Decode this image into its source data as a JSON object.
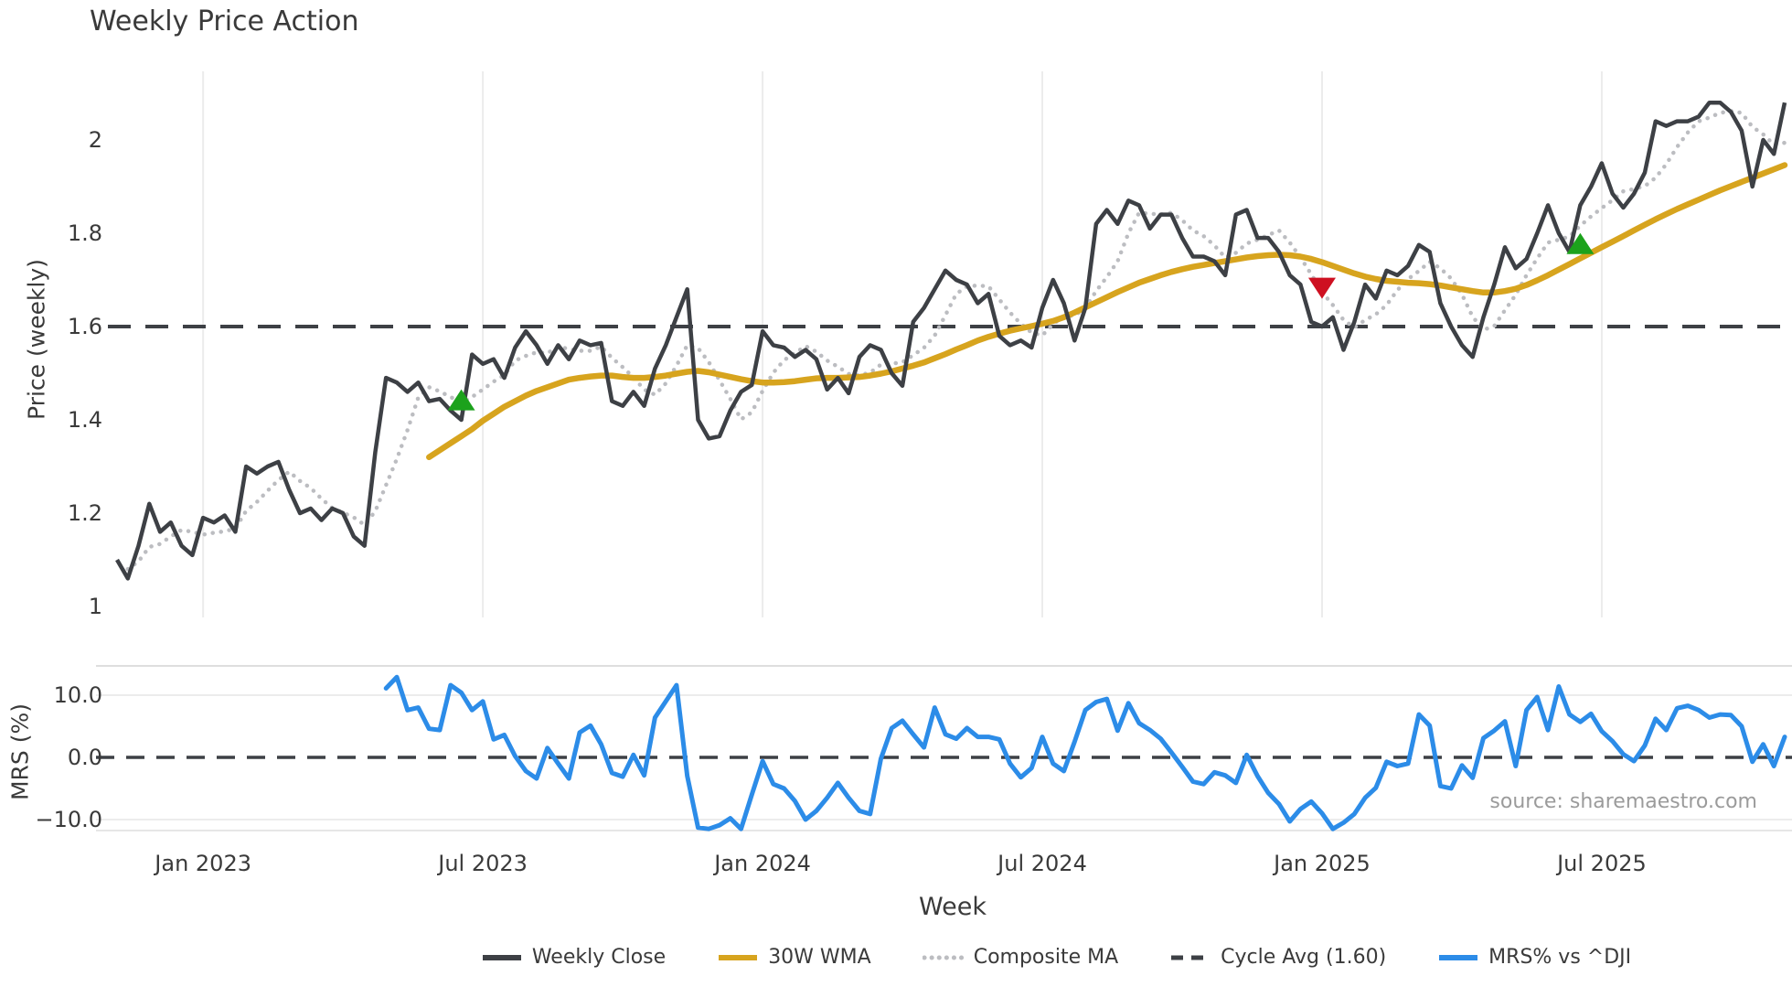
{
  "chart": {
    "title": "Weekly Price Action",
    "source_note": "source: sharemaestro.com"
  },
  "colors": {
    "close": "#3D4045",
    "wma": "#D7A41E",
    "composite": "#BCBDC1",
    "cycle_dash": "#3D4045",
    "mrs": "#2C8CE8",
    "buy": "#1CA21C",
    "sell": "#CE1021",
    "grid": "#ECECEC",
    "spine_top": "#DEDEDE",
    "spine_bottom": "#E6E6E6",
    "text": "#3A3A3A"
  },
  "chart_data": {
    "type": "line",
    "title": "Weekly Price Action",
    "xlabel": "Week",
    "x_axis": {
      "unit": "week",
      "weeks_total": 156,
      "tick_weeks": [
        8,
        34,
        60,
        86,
        112,
        138
      ],
      "tick_labels": [
        "Jan 2023",
        "Jul 2023",
        "Jan 2024",
        "Jul 2024",
        "Jan 2025",
        "Jul 2025"
      ]
    },
    "panels": [
      {
        "name": "price",
        "ylabel": "Price (weekly)",
        "ylim": [
          0.975,
          2.15
        ],
        "grid": "vertical-only",
        "yticks": [
          1,
          1.2,
          1.4,
          1.6,
          1.8,
          2
        ],
        "ytick_labels": [
          "1",
          "1.2",
          "1.4",
          "1.6",
          "1.8",
          "2"
        ],
        "cycle_avg": 1.6,
        "series": [
          {
            "name": "Weekly Close",
            "style": "solid",
            "color_key": "close",
            "start_week": 0,
            "values": [
              1.1,
              1.06,
              1.13,
              1.22,
              1.16,
              1.18,
              1.13,
              1.11,
              1.19,
              1.18,
              1.195,
              1.16,
              1.3,
              1.285,
              1.3,
              1.31,
              1.25,
              1.2,
              1.21,
              1.185,
              1.21,
              1.2,
              1.15,
              1.13,
              1.33,
              1.49,
              1.48,
              1.46,
              1.48,
              1.44,
              1.445,
              1.42,
              1.4,
              1.54,
              1.52,
              1.53,
              1.49,
              1.555,
              1.59,
              1.56,
              1.52,
              1.56,
              1.53,
              1.57,
              1.56,
              1.565,
              1.44,
              1.43,
              1.46,
              1.43,
              1.51,
              1.56,
              1.62,
              1.68,
              1.4,
              1.36,
              1.365,
              1.42,
              1.46,
              1.475,
              1.59,
              1.56,
              1.555,
              1.535,
              1.55,
              1.53,
              1.465,
              1.49,
              1.457,
              1.535,
              1.56,
              1.55,
              1.5,
              1.473,
              1.61,
              1.64,
              1.68,
              1.72,
              1.7,
              1.69,
              1.65,
              1.67,
              1.58,
              1.56,
              1.57,
              1.555,
              1.64,
              1.7,
              1.65,
              1.57,
              1.64,
              1.82,
              1.85,
              1.82,
              1.87,
              1.86,
              1.81,
              1.84,
              1.84,
              1.79,
              1.75,
              1.75,
              1.74,
              1.71,
              1.84,
              1.85,
              1.79,
              1.79,
              1.76,
              1.71,
              1.69,
              1.61,
              1.6,
              1.62,
              1.55,
              1.61,
              1.69,
              1.66,
              1.72,
              1.71,
              1.73,
              1.775,
              1.76,
              1.65,
              1.6,
              1.56,
              1.535,
              1.62,
              1.69,
              1.77,
              1.725,
              1.745,
              1.8,
              1.86,
              1.8,
              1.76,
              1.86,
              1.9,
              1.95,
              1.885,
              1.855,
              1.885,
              1.93,
              2.04,
              2.03,
              2.04,
              2.04,
              2.05,
              2.08,
              2.08,
              2.06,
              2.02,
              1.9,
              2.0,
              1.97,
              2.08
            ]
          },
          {
            "name": "30W WMA",
            "style": "solid",
            "color_key": "wma",
            "start_week": 29,
            "values": [
              1.32,
              1.335,
              1.35,
              1.365,
              1.38,
              1.398,
              1.413,
              1.428,
              1.44,
              1.452,
              1.462,
              1.47,
              1.478,
              1.486,
              1.49,
              1.493,
              1.495,
              1.495,
              1.492,
              1.49,
              1.49,
              1.492,
              1.495,
              1.499,
              1.503,
              1.505,
              1.502,
              1.497,
              1.492,
              1.487,
              1.483,
              1.48,
              1.48,
              1.481,
              1.483,
              1.486,
              1.489,
              1.49,
              1.49,
              1.491,
              1.492,
              1.495,
              1.499,
              1.504,
              1.51,
              1.516,
              1.523,
              1.532,
              1.541,
              1.551,
              1.56,
              1.57,
              1.578,
              1.585,
              1.591,
              1.596,
              1.601,
              1.606,
              1.612,
              1.62,
              1.63,
              1.641,
              1.652,
              1.663,
              1.674,
              1.684,
              1.694,
              1.702,
              1.71,
              1.717,
              1.723,
              1.728,
              1.732,
              1.736,
              1.74,
              1.744,
              1.748,
              1.751,
              1.753,
              1.754,
              1.753,
              1.75,
              1.745,
              1.738,
              1.73,
              1.722,
              1.714,
              1.707,
              1.702,
              1.698,
              1.696,
              1.694,
              1.693,
              1.691,
              1.688,
              1.684,
              1.68,
              1.676,
              1.673,
              1.673,
              1.676,
              1.681,
              1.689,
              1.699,
              1.71,
              1.722,
              1.734,
              1.746,
              1.758,
              1.77,
              1.782,
              1.794,
              1.806,
              1.818,
              1.83,
              1.841,
              1.852,
              1.862,
              1.872,
              1.882,
              1.892,
              1.901,
              1.91,
              1.919,
              1.928,
              1.937,
              1.946
            ]
          },
          {
            "name": "Composite MA",
            "style": "dotted",
            "color_key": "composite",
            "derived": "rolling mean of Weekly Close, window 5"
          },
          {
            "name": "Cycle Avg (1.60)",
            "style": "dashed",
            "color_key": "cycle_dash",
            "value": 1.6
          }
        ],
        "signals": [
          {
            "week": 32,
            "price": 1.44,
            "type": "buy"
          },
          {
            "week": 112,
            "price": 1.685,
            "type": "sell"
          },
          {
            "week": 136,
            "price": 1.775,
            "type": "buy"
          }
        ]
      },
      {
        "name": "mrs",
        "ylabel": "MRS (%)",
        "ylim": [
          -11.8,
          14.7
        ],
        "yticks": [
          10,
          0,
          -10
        ],
        "ytick_labels": [
          "10.0",
          "0.0",
          "−10.0"
        ],
        "zero_line": 0,
        "series": [
          {
            "name": "MRS% vs ^DJI",
            "style": "solid",
            "color_key": "mrs",
            "start_week": 25,
            "values": [
              11.1,
              12.9,
              7.6,
              8.0,
              4.6,
              4.4,
              11.6,
              10.4,
              7.6,
              9.0,
              2.9,
              3.6,
              0.2,
              -2.2,
              -3.4,
              1.5,
              -1.0,
              -3.4,
              4.0,
              5.1,
              2.1,
              -2.5,
              -3.1,
              0.4,
              -2.9,
              6.4,
              9.0,
              11.6,
              -3.0,
              -11.3,
              -11.5,
              -10.9,
              -9.8,
              -11.5,
              -6.0,
              -0.6,
              -4.3,
              -5.0,
              -7.0,
              -10.0,
              -8.6,
              -6.5,
              -4.1,
              -6.5,
              -8.6,
              -9.1,
              -0.2,
              4.7,
              5.9,
              3.7,
              1.6,
              8.0,
              3.7,
              3.0,
              4.7,
              3.3,
              3.3,
              2.9,
              -1.0,
              -3.2,
              -1.7,
              3.3,
              -1.0,
              -2.2,
              2.5,
              7.6,
              8.9,
              9.4,
              4.3,
              8.7,
              5.5,
              4.4,
              3.0,
              0.8,
              -1.5,
              -3.9,
              -4.3,
              -2.4,
              -2.9,
              -4.1,
              0.4,
              -3.0,
              -5.7,
              -7.5,
              -10.3,
              -8.3,
              -7.1,
              -9.0,
              -11.5,
              -10.5,
              -9.1,
              -6.5,
              -4.9,
              -0.7,
              -1.4,
              -1.0,
              6.9,
              5.1,
              -4.6,
              -5.0,
              -1.3,
              -3.3,
              3.1,
              4.3,
              5.8,
              -1.4,
              7.6,
              9.7,
              4.4,
              11.4,
              6.9,
              5.7,
              7.0,
              4.2,
              2.6,
              0.5,
              -0.6,
              1.9,
              6.2,
              4.4,
              7.9,
              8.3,
              7.6,
              6.4,
              6.9,
              6.8,
              5.0,
              -0.7,
              2.1,
              -1.4,
              3.3
            ]
          }
        ]
      }
    ]
  },
  "legend": {
    "items": [
      {
        "label": "Weekly Close",
        "style": "solid",
        "color_key": "close"
      },
      {
        "label": "30W WMA",
        "style": "solid",
        "color_key": "wma"
      },
      {
        "label": "Composite MA",
        "style": "dotted",
        "color_key": "composite"
      },
      {
        "label": "Cycle Avg (1.60)",
        "style": "dashed",
        "color_key": "cycle_dash"
      },
      {
        "label": "MRS% vs ^DJI",
        "style": "solid",
        "color_key": "mrs"
      }
    ]
  }
}
